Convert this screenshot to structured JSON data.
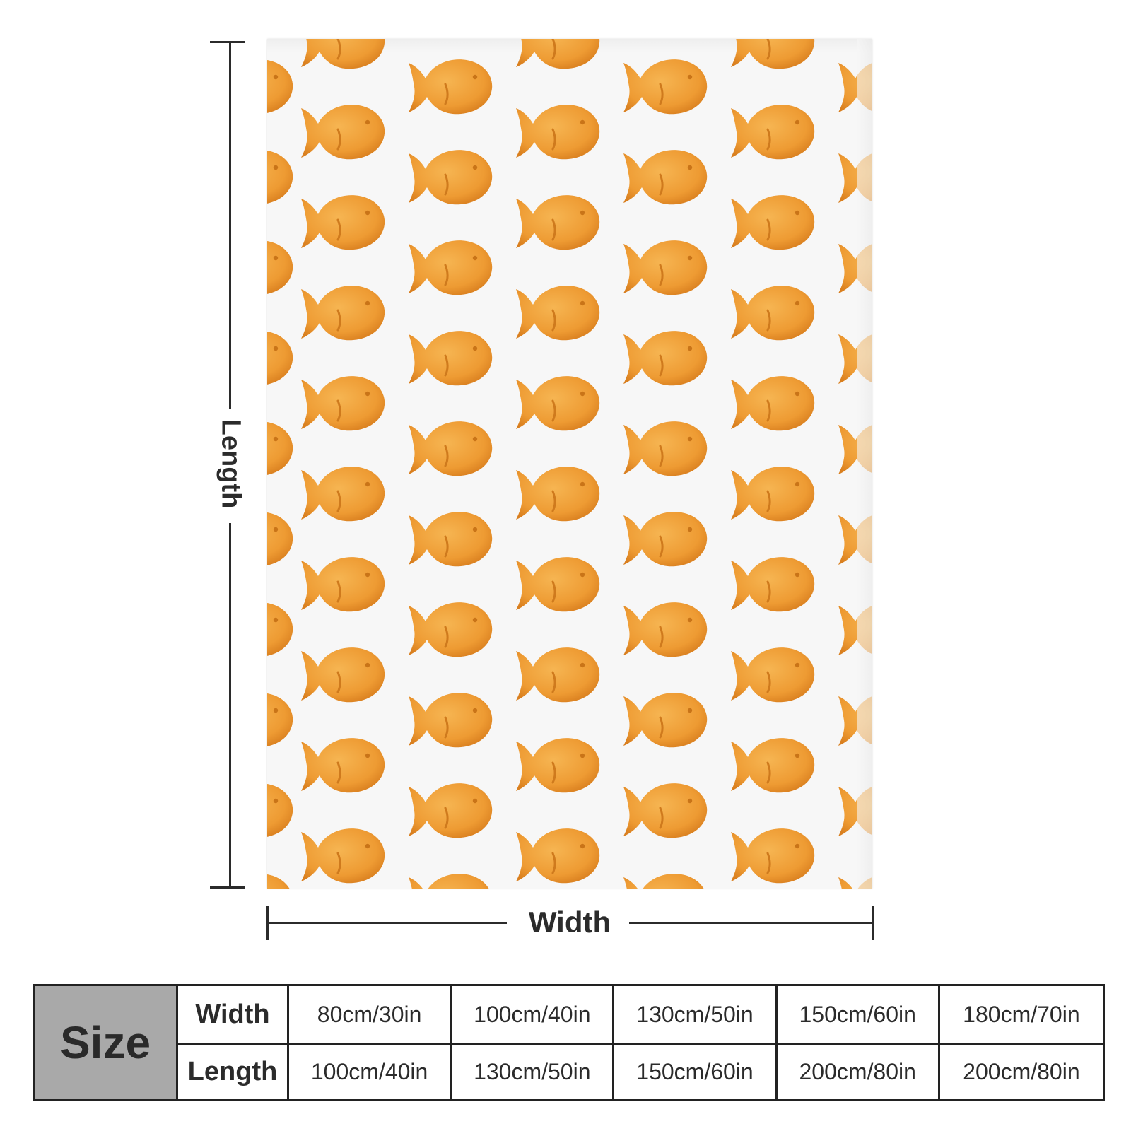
{
  "product": {
    "pattern_icon": "goldfish-cracker-icon",
    "pattern_color": "#F2A33A",
    "background_color": "#F7F7F7"
  },
  "dimensions": {
    "length_label": "Length",
    "width_label": "Width"
  },
  "size_table": {
    "header": "Size",
    "rows": [
      {
        "label": "Width",
        "values": [
          "80cm/30in",
          "100cm/40in",
          "130cm/50in",
          "150cm/60in",
          "180cm/70in"
        ]
      },
      {
        "label": "Length",
        "values": [
          "100cm/40in",
          "130cm/50in",
          "150cm/60in",
          "200cm/80in",
          "200cm/80in"
        ]
      }
    ]
  }
}
